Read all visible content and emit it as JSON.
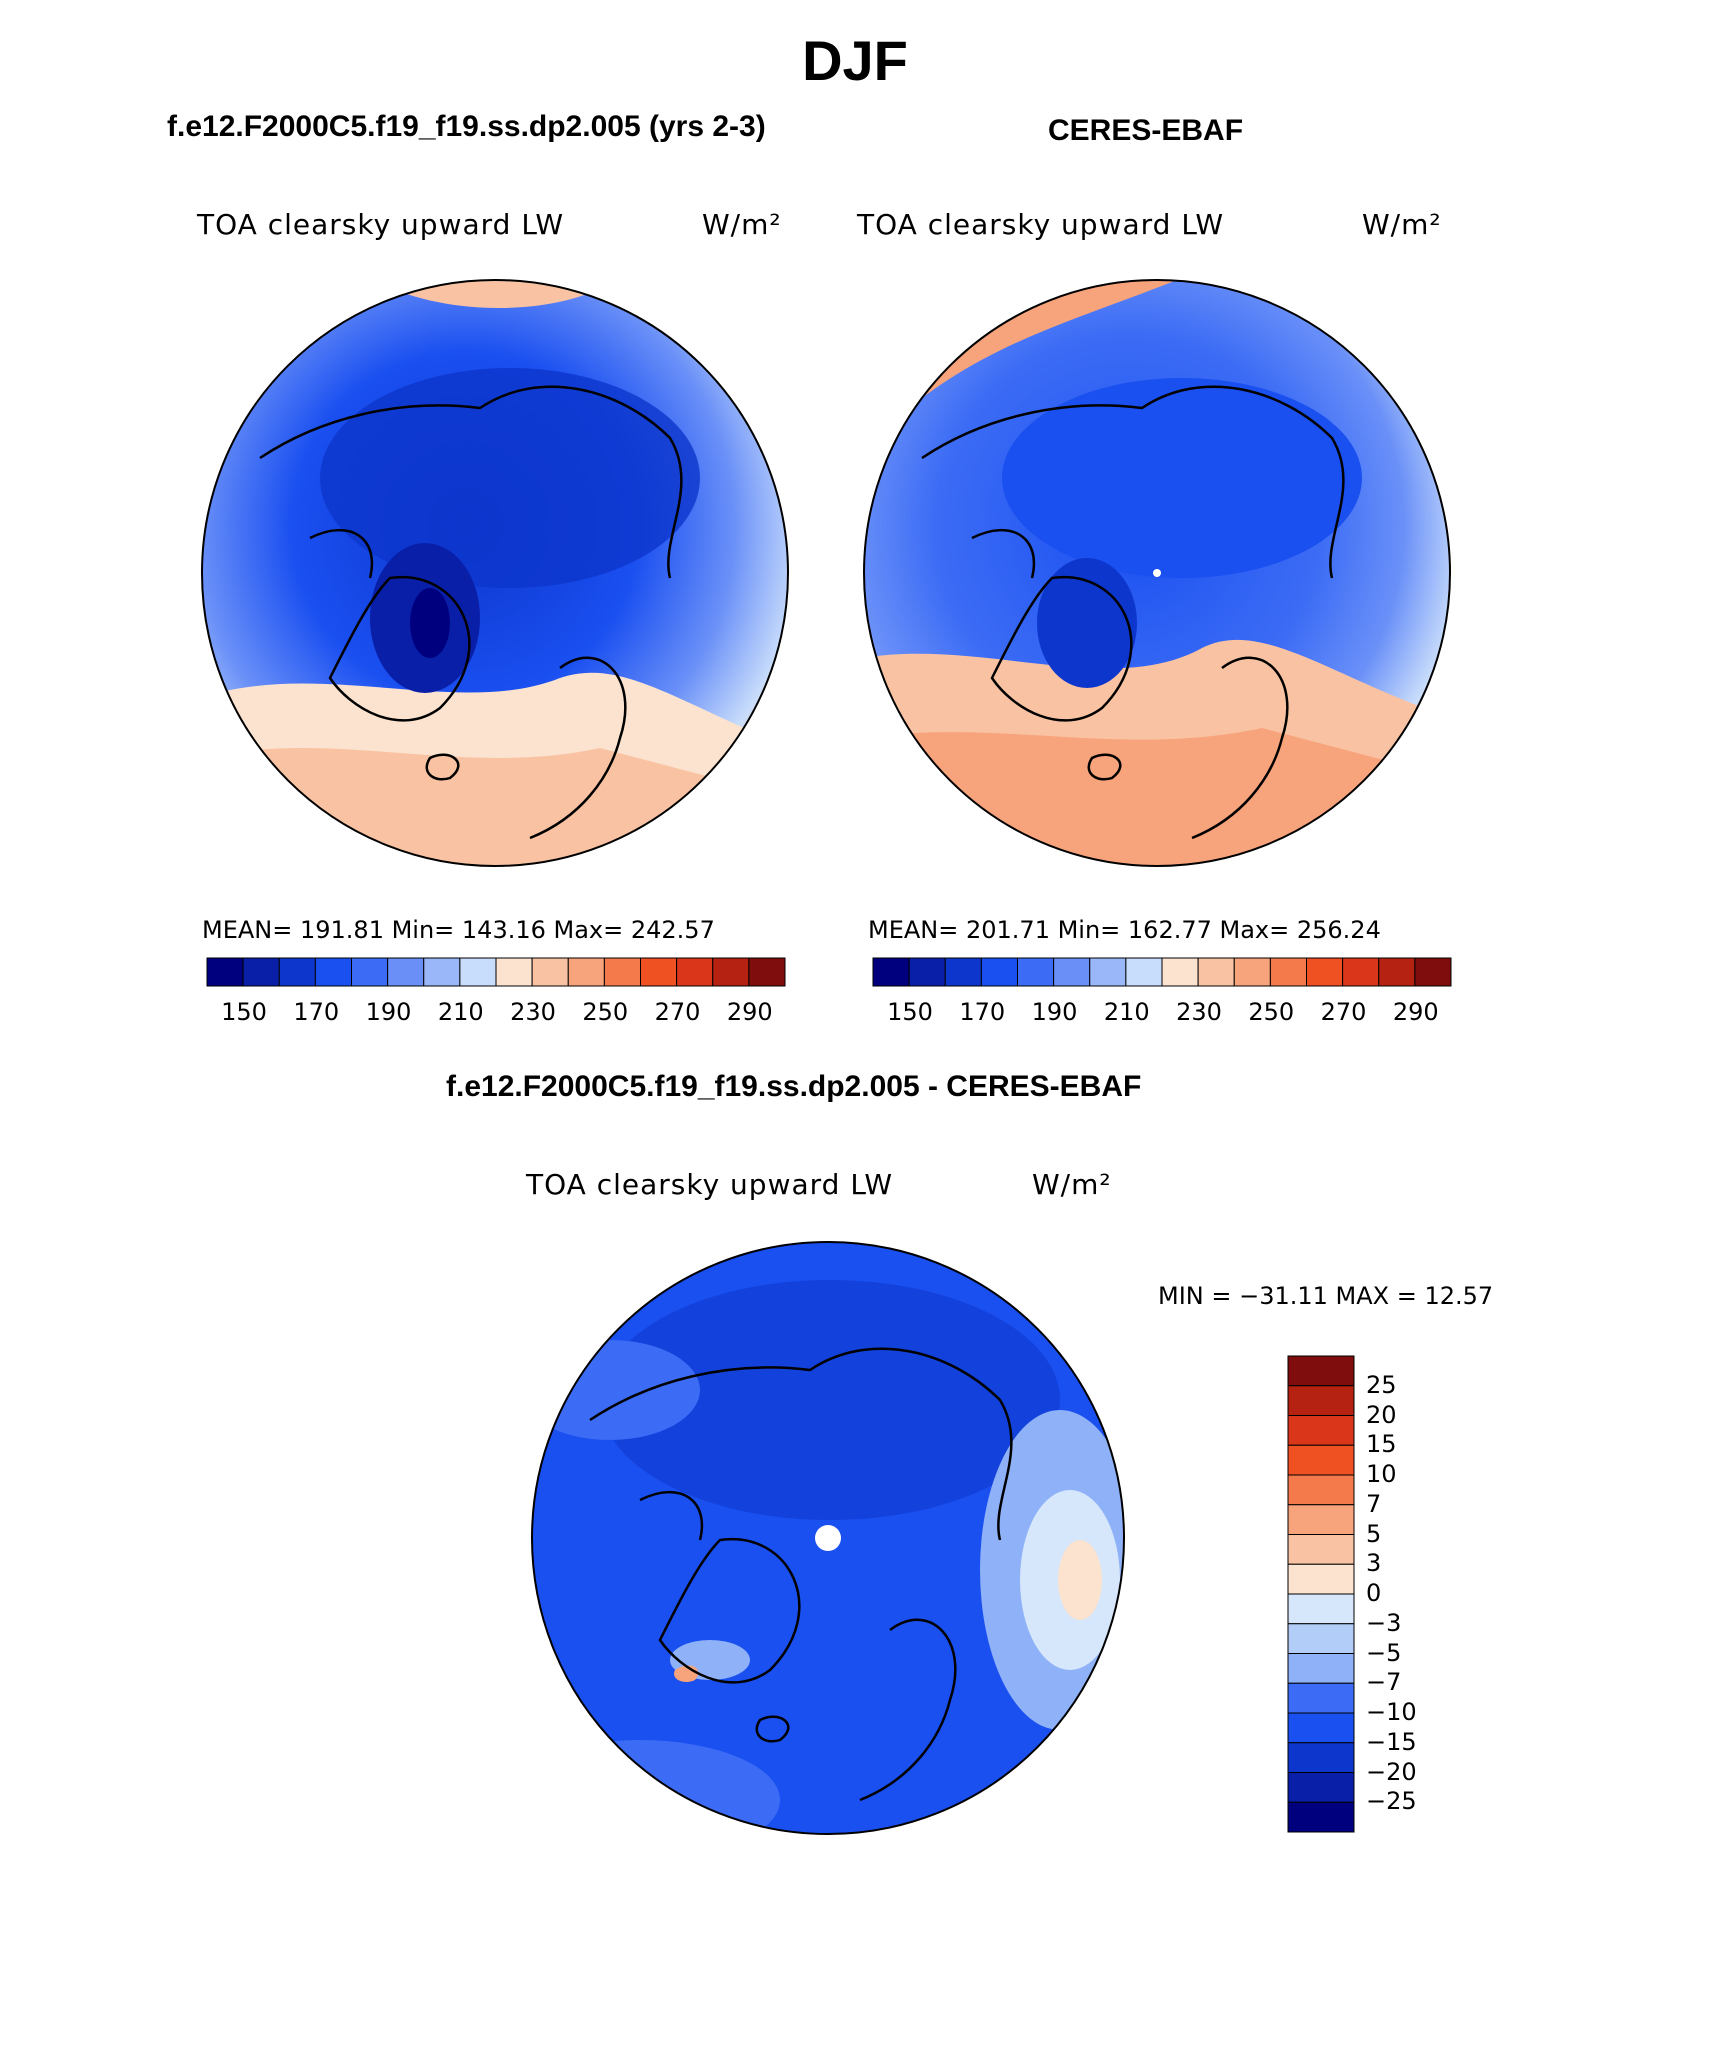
{
  "title": "DJF",
  "panels": [
    {
      "id": "model",
      "header": "f.e12.F2000C5.f19_f19.ss.dp2.005 (yrs 2-3)",
      "variable": "TOA clearsky upward LW",
      "units": "W/m²",
      "stats": "MEAN= 191.81   Min= 143.16   Max= 242.57"
    },
    {
      "id": "obs",
      "header": "CERES-EBAF",
      "variable": "TOA clearsky upward LW",
      "units": "W/m²",
      "stats": "MEAN= 201.71   Min= 162.77   Max= 256.24"
    },
    {
      "id": "diff",
      "header": "f.e12.F2000C5.f19_f19.ss.dp2.005 - CERES-EBAF",
      "variable": "TOA clearsky upward LW",
      "units": "W/m²",
      "stats": "MIN = −31.11 MAX =  12.57"
    }
  ],
  "abs_colorbar": {
    "colors": [
      "#00007f",
      "#0a1fa8",
      "#0d36cc",
      "#1a4ff0",
      "#3c6cf5",
      "#6a90f8",
      "#9ab7fa",
      "#c8dcfb",
      "#fbe3cf",
      "#f9c3a3",
      "#f7a37b",
      "#f47a4c",
      "#ef5123",
      "#d9361a",
      "#b52211",
      "#7f0d0d"
    ],
    "tick_labels": [
      "150",
      "170",
      "190",
      "210",
      "230",
      "250",
      "270",
      "290"
    ]
  },
  "diff_colorbar": {
    "colors": [
      "#7f0d0d",
      "#b52211",
      "#d9361a",
      "#ef5123",
      "#f47a4c",
      "#f7a37b",
      "#f9c3a3",
      "#fbe3cf",
      "#d6e6fb",
      "#b3cdf9",
      "#8eb1f8",
      "#3c6cf5",
      "#1a4ff0",
      "#0d36cc",
      "#0a1fa8",
      "#00007f"
    ],
    "tick_labels": [
      "25",
      "20",
      "15",
      "10",
      "7",
      "5",
      "3",
      "0",
      "−3",
      "−5",
      "−7",
      "−10",
      "−15",
      "−20",
      "−25"
    ]
  },
  "legend_colors": {
    "ocean_warm": "#f9c3a3",
    "deep_blue": "#0d36cc",
    "mid_blue": "#3c6cf5"
  }
}
